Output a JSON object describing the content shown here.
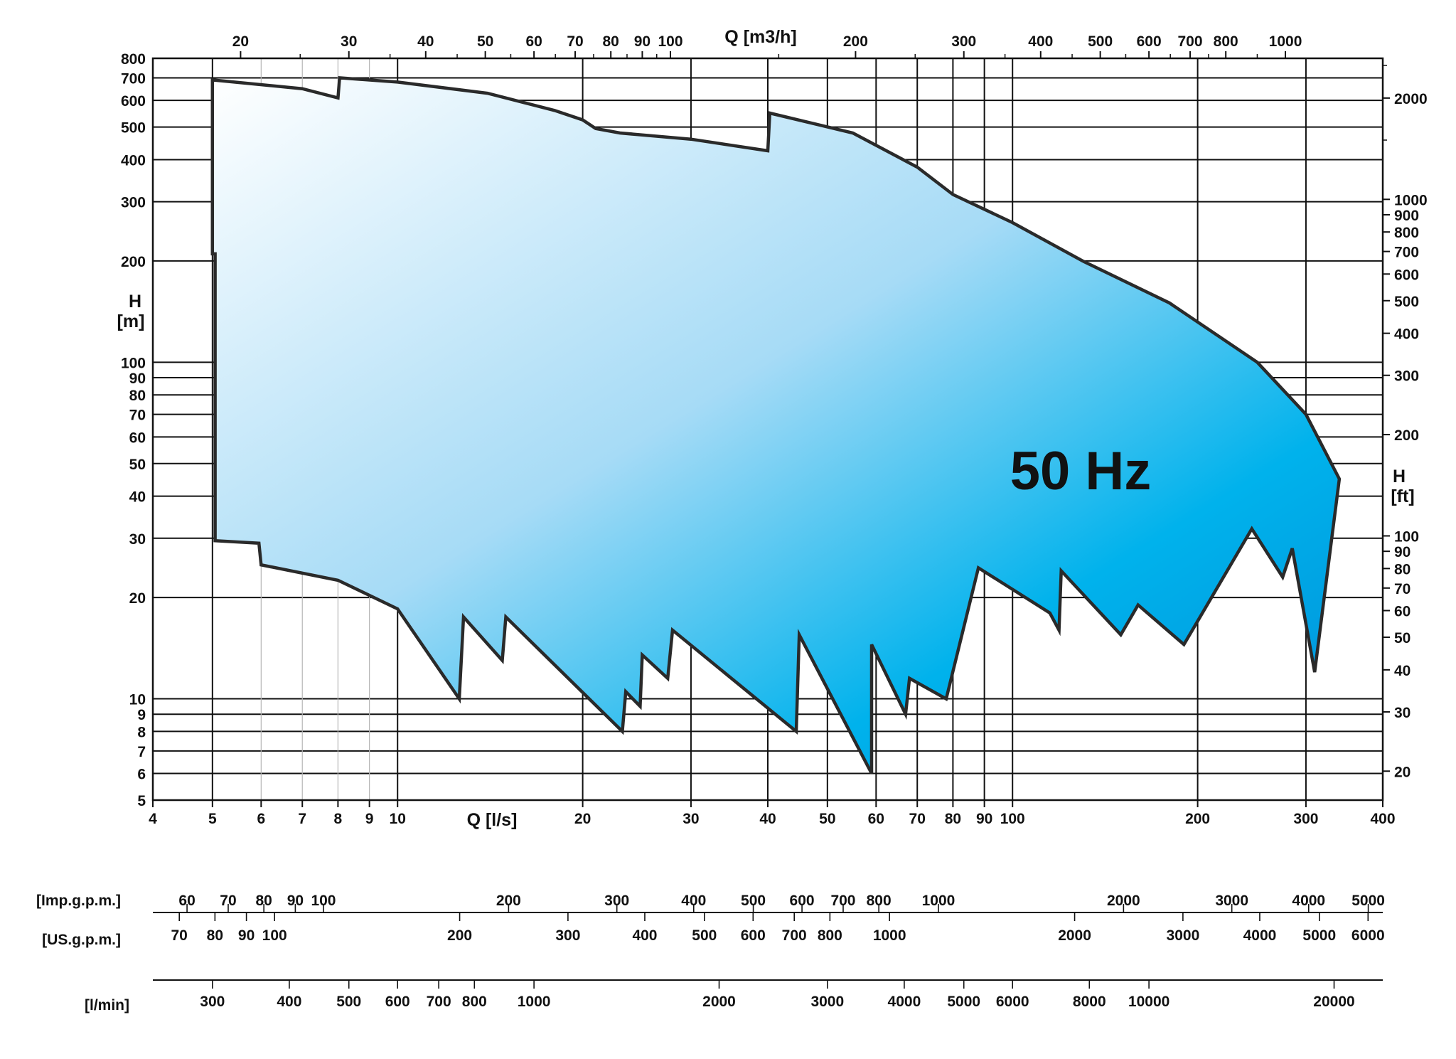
{
  "chart_data": {
    "type": "area",
    "title": "",
    "annotation": "50 Hz",
    "x_axis": {
      "label": "Q [l/s]",
      "scale": "log",
      "range": [
        4,
        400
      ],
      "ticks": [
        4,
        5,
        6,
        7,
        8,
        9,
        10,
        20,
        30,
        40,
        50,
        60,
        70,
        80,
        90,
        100,
        200,
        300,
        400
      ]
    },
    "x_axis_top": {
      "label": "Q [m3/h]",
      "scale": "log",
      "ticks": [
        20,
        30,
        40,
        50,
        60,
        70,
        80,
        90,
        100,
        200,
        300,
        400,
        500,
        600,
        700,
        800,
        1000
      ]
    },
    "y_axis": {
      "label_line1": "H",
      "label_line2": "[m]",
      "scale": "log",
      "range": [
        5,
        800
      ],
      "ticks": [
        5,
        6,
        7,
        8,
        9,
        10,
        20,
        30,
        40,
        50,
        60,
        70,
        80,
        90,
        100,
        200,
        300,
        400,
        500,
        600,
        700,
        800
      ]
    },
    "y_axis_right": {
      "label_line1": "H",
      "label_line2": "[ft]",
      "scale": "log",
      "ticks": [
        20,
        30,
        40,
        50,
        60,
        70,
        80,
        90,
        100,
        200,
        300,
        400,
        500,
        600,
        700,
        800,
        900,
        1000,
        2000
      ]
    },
    "extra_scales": [
      {
        "label": "[Imp.g.p.m.]",
        "ticks": [
          60,
          70,
          80,
          90,
          100,
          200,
          300,
          400,
          500,
          600,
          700,
          800,
          1000,
          2000,
          3000,
          4000,
          5000
        ]
      },
      {
        "label": "[US.g.p.m.]",
        "ticks": [
          70,
          80,
          90,
          100,
          200,
          300,
          400,
          500,
          600,
          700,
          800,
          1000,
          2000,
          3000,
          4000,
          5000,
          6000
        ]
      },
      {
        "label": "[l/min]",
        "ticks": [
          300,
          400,
          500,
          600,
          700,
          800,
          1000,
          2000,
          3000,
          4000,
          5000,
          6000,
          8000,
          10000,
          20000
        ]
      }
    ],
    "grid": true,
    "envelope_upper": [
      {
        "x": 5,
        "y": 690
      },
      {
        "x": 7,
        "y": 650
      },
      {
        "x": 8,
        "y": 610
      },
      {
        "x": 8.05,
        "y": 700
      },
      {
        "x": 10,
        "y": 680
      },
      {
        "x": 14,
        "y": 630
      },
      {
        "x": 18,
        "y": 560
      },
      {
        "x": 20,
        "y": 525
      },
      {
        "x": 21,
        "y": 495
      },
      {
        "x": 23,
        "y": 480
      },
      {
        "x": 30,
        "y": 460
      },
      {
        "x": 40,
        "y": 425
      },
      {
        "x": 40.3,
        "y": 550
      },
      {
        "x": 55,
        "y": 480
      },
      {
        "x": 70,
        "y": 380
      },
      {
        "x": 80,
        "y": 315
      },
      {
        "x": 100,
        "y": 260
      },
      {
        "x": 130,
        "y": 200
      },
      {
        "x": 180,
        "y": 150
      },
      {
        "x": 250,
        "y": 100
      },
      {
        "x": 300,
        "y": 70
      },
      {
        "x": 340,
        "y": 45
      }
    ],
    "envelope_lower": [
      {
        "x": 340,
        "y": 45
      },
      {
        "x": 310,
        "y": 12
      },
      {
        "x": 285,
        "y": 28
      },
      {
        "x": 275,
        "y": 23
      },
      {
        "x": 245,
        "y": 32
      },
      {
        "x": 190,
        "y": 14.5
      },
      {
        "x": 160,
        "y": 19
      },
      {
        "x": 150,
        "y": 15.5
      },
      {
        "x": 120,
        "y": 24
      },
      {
        "x": 119,
        "y": 16
      },
      {
        "x": 115,
        "y": 18
      },
      {
        "x": 88,
        "y": 24.5
      },
      {
        "x": 78,
        "y": 10
      },
      {
        "x": 68,
        "y": 11.5
      },
      {
        "x": 67,
        "y": 9
      },
      {
        "x": 59,
        "y": 14.5
      },
      {
        "x": 59,
        "y": 6
      },
      {
        "x": 45,
        "y": 15.5
      },
      {
        "x": 44.5,
        "y": 8
      },
      {
        "x": 28,
        "y": 16
      },
      {
        "x": 27.5,
        "y": 11.5
      },
      {
        "x": 25,
        "y": 13.5
      },
      {
        "x": 24.8,
        "y": 9.5
      },
      {
        "x": 23.5,
        "y": 10.5
      },
      {
        "x": 23.2,
        "y": 8
      },
      {
        "x": 15,
        "y": 17.5
      },
      {
        "x": 14.8,
        "y": 13
      },
      {
        "x": 12.8,
        "y": 17.5
      },
      {
        "x": 12.6,
        "y": 10
      },
      {
        "x": 10,
        "y": 18.5
      },
      {
        "x": 8,
        "y": 22.5
      },
      {
        "x": 6,
        "y": 25
      },
      {
        "x": 5.95,
        "y": 29
      },
      {
        "x": 5.05,
        "y": 29.5
      },
      {
        "x": 5.05,
        "y": 210
      },
      {
        "x": 5,
        "y": 210
      }
    ],
    "fill_gradient": [
      "#ffffff",
      "#a6dbf6",
      "#00b2ec",
      "#0190d8"
    ],
    "outline_color": "#2a2a2a",
    "grid_color": "#111111"
  }
}
